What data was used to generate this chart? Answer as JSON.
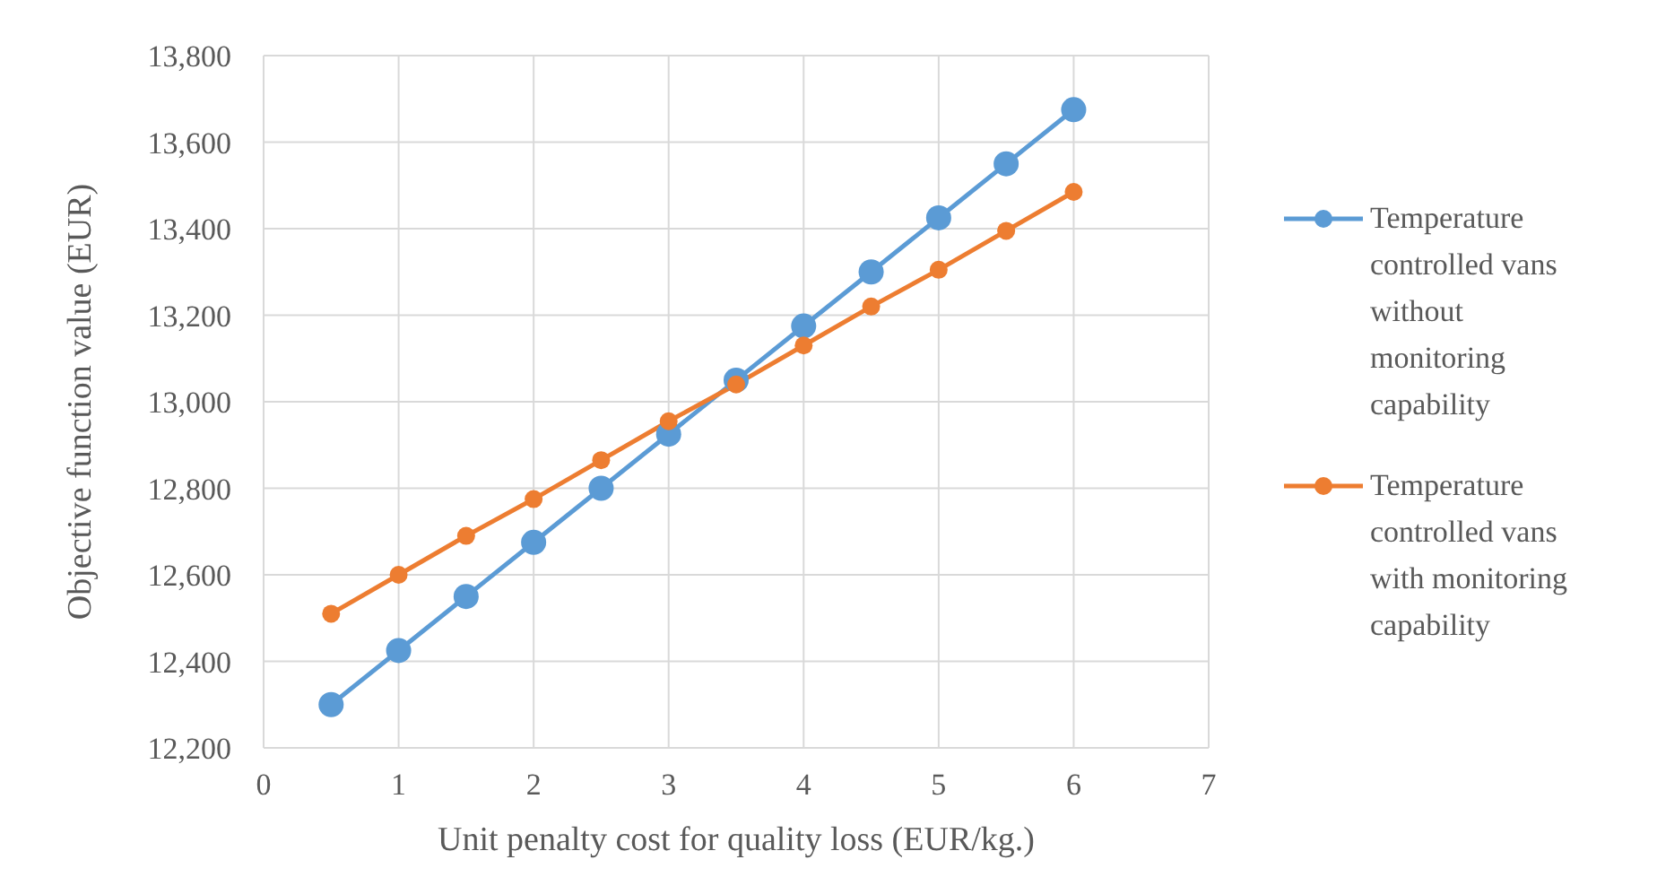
{
  "chart_data": {
    "type": "line",
    "xlabel": "Unit penalty cost for quality loss (EUR/kg.)",
    "ylabel": "Objective function value (EUR)",
    "x": [
      0.5,
      1,
      1.5,
      2,
      2.5,
      3,
      3.5,
      4,
      4.5,
      5,
      5.5,
      6
    ],
    "series": [
      {
        "name": "Temperature controlled vans without monitoring capability",
        "color": "#5b9bd5",
        "values": [
          12300,
          12425,
          12550,
          12675,
          12800,
          12925,
          13050,
          13175,
          13300,
          13425,
          13550,
          13675
        ]
      },
      {
        "name": "Temperature controlled vans with monitoring capability",
        "color": "#ed7d31",
        "values": [
          12510,
          12600,
          12690,
          12775,
          12865,
          12955,
          13040,
          13130,
          13220,
          13305,
          13395,
          13485
        ]
      }
    ],
    "xlim": [
      0,
      7
    ],
    "xticks": [
      0,
      1,
      2,
      3,
      4,
      5,
      6,
      7
    ],
    "ylim": [
      12200,
      13800
    ],
    "yticks": [
      {
        "value": 12200,
        "label": "12,200"
      },
      {
        "value": 12400,
        "label": "12,400"
      },
      {
        "value": 12600,
        "label": "12,600"
      },
      {
        "value": 12800,
        "label": "12,800"
      },
      {
        "value": 13000,
        "label": "13,000"
      },
      {
        "value": 13200,
        "label": "13,200"
      },
      {
        "value": 13400,
        "label": "13,400"
      },
      {
        "value": 13600,
        "label": "13,600"
      },
      {
        "value": 13800,
        "label": "13,800"
      }
    ],
    "grid": true,
    "legend": "right",
    "marker": "circle",
    "line_style": "solid"
  }
}
